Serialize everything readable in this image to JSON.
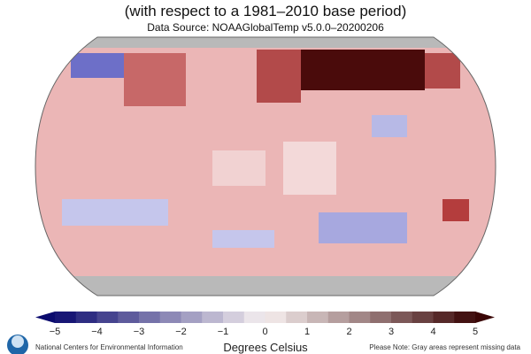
{
  "subtitle": "(with respect to a 1981–2010 base period)",
  "data_source": "Data Source: NOAAGlobalTemp v5.0.0–20200206",
  "colorbar": {
    "ticks": [
      "−5",
      "−4",
      "−3",
      "−2",
      "−1",
      "0",
      "1",
      "2",
      "3",
      "4",
      "5"
    ],
    "min": -5,
    "max": 5,
    "step": 0.5,
    "low_color": "#0b0b6e",
    "mid_color": "#f7f0f0",
    "high_color": "#3a0606",
    "label": "Degrees Celsius"
  },
  "footer": {
    "org": "National Centers for Environmental Information",
    "note": "Please Note: Gray areas represent missing data"
  },
  "colors": {
    "missing": "#b9b9b9",
    "baseline_warm": "#eab4b4"
  },
  "logo": "NOAA"
}
